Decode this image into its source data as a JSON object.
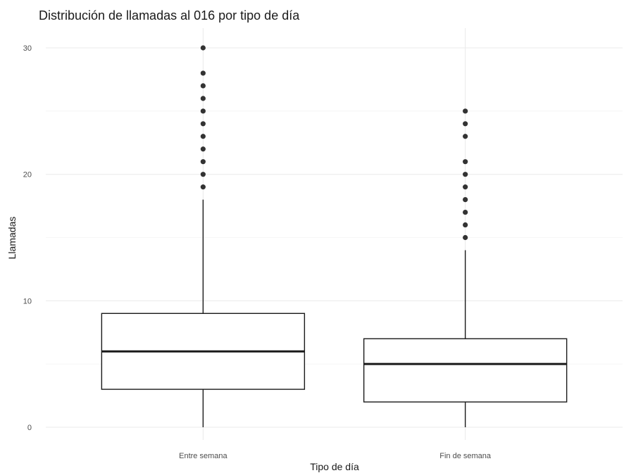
{
  "chart_data": {
    "type": "boxplot",
    "title": "Distribución de llamadas al 016 por tipo de día",
    "xlabel": "Tipo de día",
    "ylabel": "Llamadas",
    "ylim": [
      -1,
      31
    ],
    "yticks": [
      0,
      10,
      20,
      30
    ],
    "yticks_minor": [
      5,
      15,
      25
    ],
    "grid": true,
    "categories": [
      "Entre semana",
      "Fin de semana"
    ],
    "boxes": [
      {
        "category": "Entre semana",
        "whisker_low": 0,
        "q1": 3,
        "median": 6,
        "q3": 9,
        "whisker_high": 18,
        "outliers": [
          19,
          20,
          21,
          22,
          23,
          24,
          25,
          26,
          27,
          28,
          30
        ]
      },
      {
        "category": "Fin de semana",
        "whisker_low": 0,
        "q1": 2,
        "median": 5,
        "q3": 7,
        "whisker_high": 14,
        "outliers": [
          15,
          16,
          17,
          18,
          19,
          20,
          21,
          23,
          24,
          25
        ]
      }
    ]
  }
}
